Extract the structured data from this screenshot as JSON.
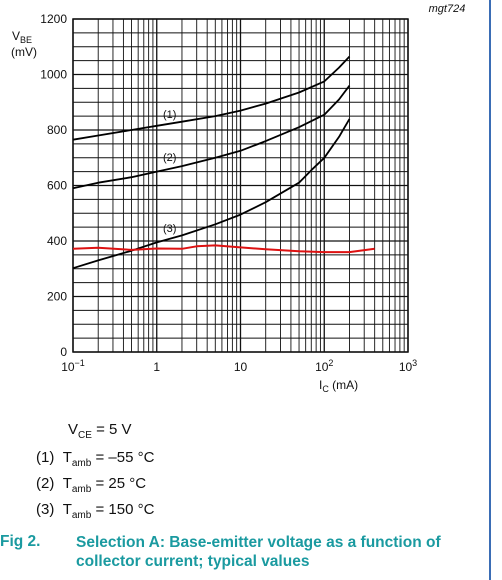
{
  "figure": {
    "ref_code": "mgt724",
    "y_label_main": "V",
    "y_label_sub": "BE",
    "y_label_unit": "(mV)",
    "x_label_main": "I",
    "x_label_sub": "C",
    "x_label_unit": " (mA)",
    "conditions": {
      "vce_main": "V",
      "vce_sub": "CE",
      "vce_value": " = 5 V",
      "items": [
        {
          "num": "(1)",
          "t_main": "T",
          "t_sub": "amb",
          "value": " = –55 °C"
        },
        {
          "num": "(2)",
          "t_main": "T",
          "t_sub": "amb",
          "value": " = 25 °C"
        },
        {
          "num": "(3)",
          "t_main": "T",
          "t_sub": "amb",
          "value": " = 150 °C"
        }
      ]
    },
    "caption_number": "Fig 2.",
    "caption_text": "Selection A: Base-emitter voltage as a function of collector current; typical values"
  },
  "chart_data": {
    "type": "line",
    "x_scale": "log",
    "xlim": [
      0.1,
      1000
    ],
    "ylim": [
      0,
      1200
    ],
    "y_ticks": [
      0,
      200,
      400,
      600,
      800,
      1000,
      1200
    ],
    "x_tick_labels": [
      {
        "value": 0.1,
        "base": "10",
        "exp": "−1"
      },
      {
        "value": 1,
        "base": "1",
        "exp": ""
      },
      {
        "value": 10,
        "base": "10",
        "exp": ""
      },
      {
        "value": 100,
        "base": "10",
        "exp": "2"
      },
      {
        "value": 1000,
        "base": "10",
        "exp": "3"
      }
    ],
    "grid": true,
    "series": [
      {
        "name": "(1)",
        "color": "#000000",
        "x": [
          0.1,
          0.2,
          0.5,
          1,
          2,
          5,
          10,
          20,
          50,
          100,
          150,
          200
        ],
        "y": [
          765,
          780,
          800,
          815,
          830,
          850,
          870,
          895,
          935,
          975,
          1025,
          1065
        ]
      },
      {
        "name": "(2)",
        "color": "#000000",
        "x": [
          0.1,
          0.2,
          0.5,
          1,
          2,
          5,
          10,
          20,
          50,
          100,
          150,
          200
        ],
        "y": [
          590,
          610,
          630,
          650,
          670,
          700,
          725,
          760,
          810,
          855,
          910,
          960
        ]
      },
      {
        "name": "(3)",
        "color": "#000000",
        "x": [
          0.1,
          0.2,
          0.5,
          1,
          2,
          5,
          10,
          20,
          50,
          70,
          100,
          150,
          200
        ],
        "y": [
          302,
          330,
          365,
          395,
          420,
          460,
          495,
          540,
          610,
          655,
          700,
          775,
          840
        ]
      },
      {
        "name": "",
        "color": "#dd1111",
        "x": [
          0.1,
          0.2,
          0.5,
          1,
          2,
          3,
          5,
          10,
          20,
          50,
          100,
          200,
          400
        ],
        "y": [
          372,
          376,
          368,
          373,
          372,
          381,
          384,
          377,
          370,
          363,
          360,
          360,
          372
        ]
      }
    ]
  }
}
